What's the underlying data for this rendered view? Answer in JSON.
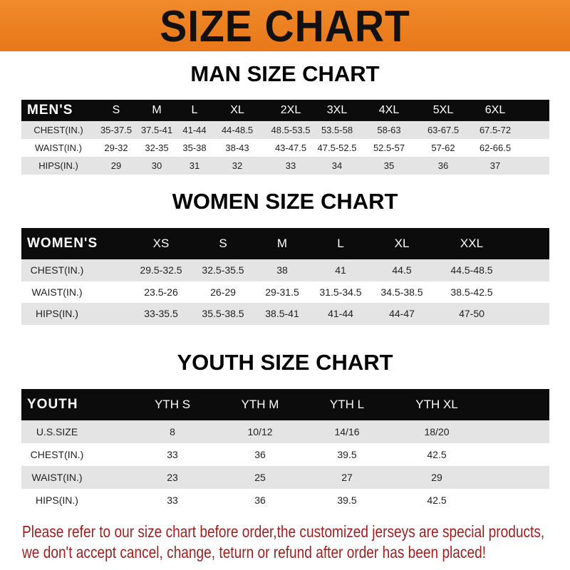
{
  "title": "SIZE CHART",
  "men": {
    "title": "MAN SIZE CHART",
    "header": "MEN'S",
    "sizes": [
      "S",
      "M",
      "L",
      "XL",
      "2XL",
      "3XL",
      "4XL",
      "5XL",
      "6XL"
    ],
    "rows": [
      {
        "label": "CHEST(IN.)",
        "values": [
          "35-37.5",
          "37.5-41",
          "41-44",
          "44-48.5",
          "48.5-53.5",
          "53.5-58",
          "58-63",
          "63-67.5",
          "67.5-72"
        ]
      },
      {
        "label": "WAIST(IN.)",
        "values": [
          "29-32",
          "32-35",
          "35-38",
          "38-43",
          "43-47.5",
          "47.5-52.5",
          "52.5-57",
          "57-62",
          "62-66.5"
        ]
      },
      {
        "label": "HIPS(IN.)",
        "values": [
          "29",
          "30",
          "31",
          "32",
          "33",
          "34",
          "35",
          "36",
          "37"
        ]
      }
    ]
  },
  "women": {
    "title": "WOMEN SIZE CHART",
    "header": "WOMEN'S",
    "sizes": [
      "XS",
      "S",
      "M",
      "L",
      "XL",
      "XXL"
    ],
    "rows": [
      {
        "label": "CHEST(IN.)",
        "values": [
          "29.5-32.5",
          "32.5-35.5",
          "38",
          "41",
          "44.5",
          "44.5-48.5"
        ]
      },
      {
        "label": "WAIST(IN.)",
        "values": [
          "23.5-26",
          "26-29",
          "29-31.5",
          "31.5-34.5",
          "34.5-38.5",
          "38.5-42.5"
        ]
      },
      {
        "label": "HIPS(IN.)",
        "values": [
          "33-35.5",
          "35.5-38.5",
          "38.5-41",
          "41-44",
          "44-47",
          "47-50"
        ]
      }
    ]
  },
  "youth": {
    "title": "YOUTH SIZE CHART",
    "header": "YOUTH",
    "sizes": [
      "YTH S",
      "YTH M",
      "YTH L",
      "YTH XL"
    ],
    "rows": [
      {
        "label": "U.S.SIZE",
        "values": [
          "8",
          "10/12",
          "14/16",
          "18/20"
        ]
      },
      {
        "label": "CHEST(IN.)",
        "values": [
          "33",
          "36",
          "39.5",
          "42.5"
        ]
      },
      {
        "label": "WAIST(IN.)",
        "values": [
          "23",
          "25",
          "27",
          "29"
        ]
      },
      {
        "label": "HIPS(IN.)",
        "values": [
          "33",
          "36",
          "39.5",
          "42.5"
        ]
      }
    ]
  },
  "notice": [
    "Please refer to our size chart before order,the customized jerseys are special products,",
    "we don't accept cancel, change, teturn or refund after order has been placed!"
  ],
  "colors": {
    "banner": "#ee8222",
    "header_bg": "#0c0c0c",
    "row_alt": "#e4e4e4",
    "notice": "#9e1e1e"
  }
}
